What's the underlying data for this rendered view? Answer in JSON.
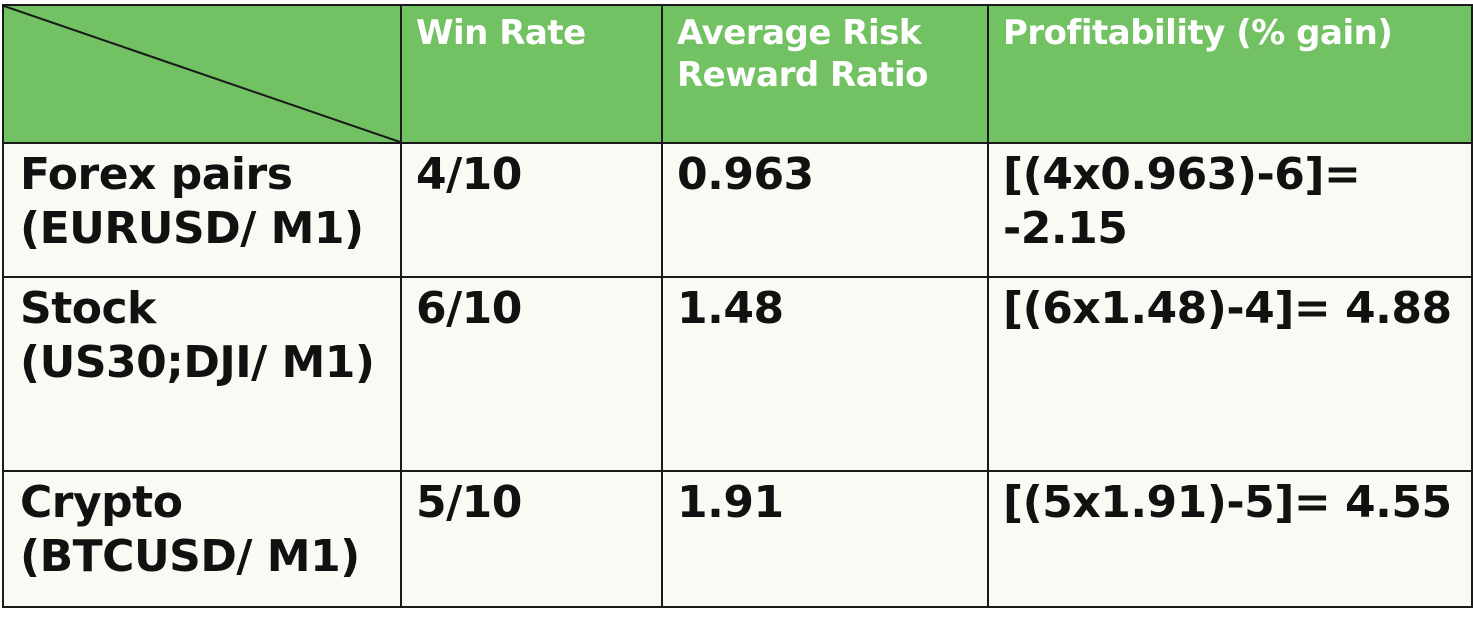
{
  "table": {
    "headers": [
      "Win Rate",
      "Average Risk Reward Ratio",
      "Profitability (% gain)"
    ],
    "rows": [
      {
        "label": "Forex pairs (EURUSD/ M1)",
        "win_rate": "4/10",
        "risk_reward": "0.963",
        "profitability": "[(4x0.963)-6]= -2.15"
      },
      {
        "label": "Stock (US30;DJI/ M1)",
        "win_rate": "6/10",
        "risk_reward": "1.48",
        "profitability": "[(6x1.48)-4]= 4.88"
      },
      {
        "label": "Crypto (BTCUSD/ M1)",
        "win_rate": "5/10",
        "risk_reward": "1.91",
        "profitability": "[(5x1.91)-5]= 4.55"
      }
    ]
  },
  "colors": {
    "header_bg": "#72c263",
    "header_text": "#ffffff",
    "body_bg": "#fbf9f4",
    "body_text": "#111111",
    "border": "#1a1a1a"
  }
}
